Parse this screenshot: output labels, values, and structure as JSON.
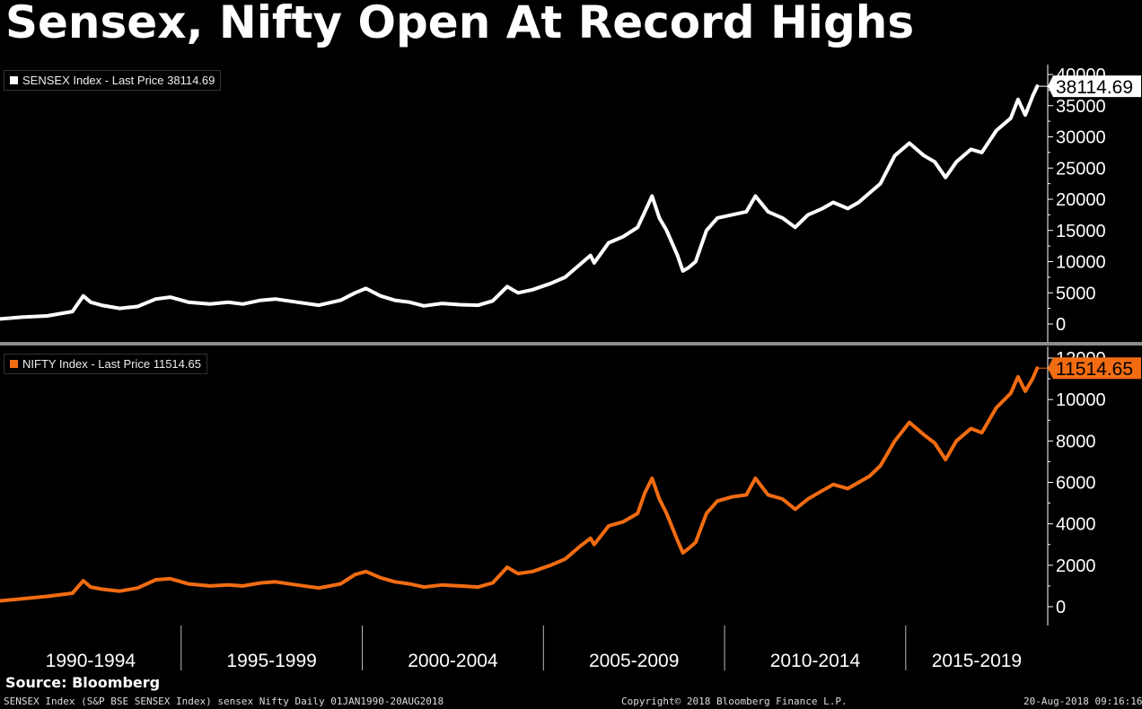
{
  "title": "Sensex, Nifty Open At Record Highs",
  "source": "Source: Bloomberg",
  "footer": {
    "left": "SENSEX Index (S&P BSE SENSEX Index) sensex Nifty  Daily 01JAN1990-20AUG2018",
    "center": "Copyright© 2018 Bloomberg Finance L.P.",
    "right": "20-Aug-2018 09:16:16"
  },
  "colors": {
    "background": "#000000",
    "sensex": "#ffffff",
    "nifty": "#f26c12",
    "axis": "#ffffff",
    "divider": "#8c8c8c"
  },
  "chart_data": [
    {
      "type": "line",
      "legend": "SENSEX Index - Last Price 38114.69",
      "last_price_label": "38114.69",
      "y_ticks": [
        "0",
        "5000",
        "10000",
        "15000",
        "20000",
        "25000",
        "30000",
        "35000",
        "40000"
      ],
      "ylim": [
        0,
        40000
      ],
      "x_categories": [
        "1990-1994",
        "1995-1999",
        "2000-2004",
        "2005-2009",
        "2010-2014",
        "2015-2019"
      ],
      "series": [
        {
          "color": "#ffffff",
          "x": [
            1990.0,
            1990.6,
            1991.3,
            1992.0,
            1992.3,
            1992.5,
            1992.8,
            1993.3,
            1993.8,
            1994.3,
            1994.7,
            1995.2,
            1995.8,
            1996.3,
            1996.7,
            1997.2,
            1997.6,
            1998.2,
            1998.8,
            1999.4,
            1999.8,
            2000.1,
            2000.5,
            2000.9,
            2001.3,
            2001.7,
            2002.2,
            2002.7,
            2003.2,
            2003.6,
            2004.0,
            2004.3,
            2004.7,
            2005.2,
            2005.6,
            2006.0,
            2006.3,
            2006.4,
            2006.8,
            2007.2,
            2007.6,
            2007.8,
            2008.0,
            2008.2,
            2008.4,
            2008.7,
            2008.85,
            2009.0,
            2009.2,
            2009.5,
            2009.8,
            2010.2,
            2010.6,
            2010.85,
            2011.2,
            2011.6,
            2011.95,
            2012.3,
            2012.7,
            2013.0,
            2013.4,
            2013.7,
            2014.0,
            2014.3,
            2014.7,
            2015.1,
            2015.5,
            2015.8,
            2016.1,
            2016.4,
            2016.8,
            2017.1,
            2017.5,
            2017.9,
            2018.1,
            2018.3,
            2018.5,
            2018.63
          ],
          "values": [
            800,
            1100,
            1300,
            2000,
            4500,
            3500,
            3000,
            2500,
            2800,
            4000,
            4300,
            3500,
            3200,
            3500,
            3200,
            3800,
            4000,
            3500,
            3000,
            3800,
            5000,
            5700,
            4500,
            3800,
            3500,
            2900,
            3300,
            3100,
            3000,
            3700,
            6000,
            5000,
            5500,
            6500,
            7500,
            9500,
            11000,
            9800,
            13000,
            14000,
            15500,
            18000,
            20500,
            17000,
            15000,
            11000,
            8500,
            9000,
            10000,
            15000,
            17000,
            17500,
            18000,
            20500,
            18000,
            17000,
            15500,
            17500,
            18500,
            19500,
            18500,
            19500,
            21000,
            22500,
            27000,
            29000,
            27000,
            26000,
            23500,
            26000,
            28000,
            27500,
            31000,
            33000,
            36000,
            33500,
            36500,
            38114.69
          ]
        }
      ]
    },
    {
      "type": "line",
      "legend": "NIFTY Index - Last Price 11514.65",
      "last_price_label": "11514.65",
      "y_ticks": [
        "0",
        "2000",
        "4000",
        "6000",
        "8000",
        "10000",
        "12000"
      ],
      "ylim": [
        0,
        12000
      ],
      "x_categories": [
        "1990-1994",
        "1995-1999",
        "2000-2004",
        "2005-2009",
        "2010-2014",
        "2015-2019"
      ],
      "series": [
        {
          "color": "#f26c12",
          "x": [
            1990.0,
            1990.6,
            1991.3,
            1992.0,
            1992.3,
            1992.5,
            1992.8,
            1993.3,
            1993.8,
            1994.3,
            1994.7,
            1995.2,
            1995.8,
            1996.3,
            1996.7,
            1997.2,
            1997.6,
            1998.2,
            1998.8,
            1999.4,
            1999.8,
            2000.1,
            2000.5,
            2000.9,
            2001.3,
            2001.7,
            2002.2,
            2002.7,
            2003.2,
            2003.6,
            2004.0,
            2004.3,
            2004.7,
            2005.2,
            2005.6,
            2006.0,
            2006.3,
            2006.4,
            2006.8,
            2007.2,
            2007.6,
            2007.8,
            2008.0,
            2008.2,
            2008.4,
            2008.7,
            2008.85,
            2009.0,
            2009.2,
            2009.5,
            2009.8,
            2010.2,
            2010.6,
            2010.85,
            2011.2,
            2011.6,
            2011.95,
            2012.3,
            2012.7,
            2013.0,
            2013.4,
            2013.7,
            2014.0,
            2014.3,
            2014.7,
            2015.1,
            2015.5,
            2015.8,
            2016.1,
            2016.4,
            2016.8,
            2017.1,
            2017.5,
            2017.9,
            2018.1,
            2018.3,
            2018.5,
            2018.63
          ],
          "values": [
            280,
            380,
            500,
            650,
            1250,
            950,
            850,
            750,
            900,
            1300,
            1350,
            1100,
            1000,
            1050,
            1000,
            1150,
            1200,
            1050,
            900,
            1100,
            1550,
            1700,
            1400,
            1200,
            1100,
            950,
            1050,
            1000,
            950,
            1150,
            1900,
            1600,
            1700,
            2000,
            2300,
            2900,
            3300,
            3000,
            3900,
            4100,
            4500,
            5500,
            6200,
            5200,
            4500,
            3200,
            2600,
            2800,
            3100,
            4500,
            5100,
            5300,
            5400,
            6200,
            5400,
            5200,
            4700,
            5200,
            5600,
            5900,
            5700,
            6000,
            6300,
            6800,
            8000,
            8900,
            8300,
            7900,
            7100,
            8000,
            8600,
            8400,
            9600,
            10300,
            11100,
            10400,
            11000,
            11514.65
          ]
        }
      ]
    }
  ]
}
